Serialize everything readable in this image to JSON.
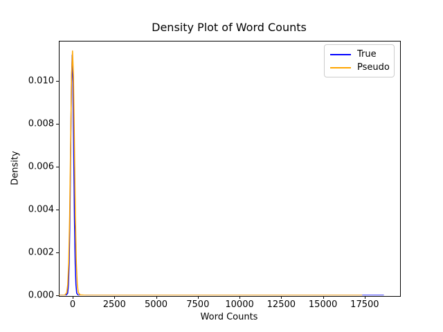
{
  "chart_data": {
    "type": "line",
    "subtype": "kde-density",
    "title": "Density Plot of Word Counts",
    "xlabel": "Word Counts",
    "ylabel": "Density",
    "xlim": [
      -830,
      19580
    ],
    "ylim": [
      0,
      0.01187
    ],
    "grid": false,
    "background_color": "#ffffff",
    "spine_color": "#000000",
    "legend": {
      "position": "upper right",
      "border_color": "#cccccc"
    },
    "xticks": [
      {
        "value": 0,
        "label": "0"
      },
      {
        "value": 2500,
        "label": "2500"
      },
      {
        "value": 5000,
        "label": "5000"
      },
      {
        "value": 7500,
        "label": "7500"
      },
      {
        "value": 10000,
        "label": "10000"
      },
      {
        "value": 12500,
        "label": "12500"
      },
      {
        "value": 15000,
        "label": "15000"
      },
      {
        "value": 17500,
        "label": "17500"
      }
    ],
    "yticks": [
      {
        "value": 0.0,
        "label": "0.000"
      },
      {
        "value": 0.002,
        "label": "0.002"
      },
      {
        "value": 0.004,
        "label": "0.004"
      },
      {
        "value": 0.006,
        "label": "0.006"
      },
      {
        "value": 0.008,
        "label": "0.008"
      },
      {
        "value": 0.01,
        "label": "0.010"
      }
    ],
    "series": [
      {
        "name": "True",
        "color": "#0000ff",
        "peak": {
          "x": -30,
          "y": 0.0112
        },
        "x_end": 18650,
        "points": [
          [
            -830,
            0.0
          ],
          [
            -500,
            2e-06
          ],
          [
            -390,
            1e-05
          ],
          [
            -300,
            0.0001
          ],
          [
            -255,
            0.0005
          ],
          [
            -210,
            0.0015
          ],
          [
            -165,
            0.0036
          ],
          [
            -120,
            0.0068
          ],
          [
            -75,
            0.0099
          ],
          [
            -30,
            0.0112
          ],
          [
            15,
            0.0099
          ],
          [
            60,
            0.0068
          ],
          [
            105,
            0.0036
          ],
          [
            150,
            0.0015
          ],
          [
            195,
            0.0005
          ],
          [
            240,
            0.0001
          ],
          [
            330,
            1e-05
          ],
          [
            600,
            3e-06
          ],
          [
            2000,
            2e-06
          ],
          [
            18650,
            2e-06
          ]
        ]
      },
      {
        "name": "Pseudo",
        "color": "#ffa500",
        "peak": {
          "x": -10,
          "y": 0.0114
        },
        "x_end": 17350,
        "points": [
          [
            -830,
            0.0
          ],
          [
            -560,
            3e-06
          ],
          [
            -470,
            1e-05
          ],
          [
            -355,
            0.00013
          ],
          [
            -297,
            0.0005
          ],
          [
            -240,
            0.0015
          ],
          [
            -182,
            0.0037
          ],
          [
            -125,
            0.007
          ],
          [
            -67,
            0.0102
          ],
          [
            -10,
            0.0114
          ],
          [
            47,
            0.0102
          ],
          [
            105,
            0.007
          ],
          [
            162,
            0.0037
          ],
          [
            220,
            0.0015
          ],
          [
            277,
            0.0005
          ],
          [
            335,
            0.00013
          ],
          [
            450,
            2e-05
          ],
          [
            800,
            5e-06
          ],
          [
            2000,
            3e-06
          ],
          [
            17350,
            3e-06
          ]
        ]
      }
    ]
  }
}
